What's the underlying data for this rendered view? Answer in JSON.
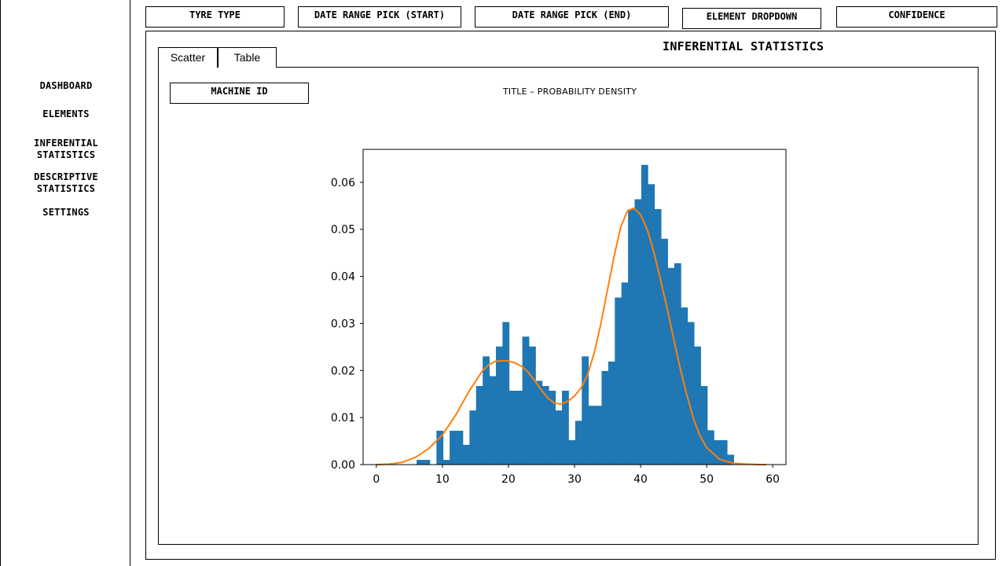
{
  "sidebar": {
    "items": [
      {
        "label": "DASHBOARD"
      },
      {
        "label": "ELEMENTS"
      },
      {
        "label_line1": "INFERENTIAL",
        "label_line2": "STATISTICS"
      },
      {
        "label_line1": "DESCRIPTIVE",
        "label_line2": "STATISTICS"
      },
      {
        "label": "SETTINGS"
      }
    ]
  },
  "filters": {
    "tyre_type": "TYRE TYPE",
    "date_start": "DATE RANGE PICK (START)",
    "date_end": "DATE RANGE PICK (END)",
    "element_dropdown": "ELEMENT DROPDOWN",
    "confidence": "CONFIDENCE"
  },
  "main": {
    "section_title": "INFERENTIAL STATISTICS",
    "tabs": [
      {
        "label": "Scatter"
      },
      {
        "label": "Table"
      }
    ],
    "machine_id": "MACHINE ID",
    "chart_title": "TITLE – PROBABILITY DENSITY"
  },
  "colors": {
    "bars": "#1f77b4",
    "curve": "#ff7f0e"
  },
  "chart_data": {
    "type": "bar",
    "overlay": "line",
    "xlim": [
      -2,
      62
    ],
    "ylim": [
      0,
      0.067
    ],
    "xticks": [
      0,
      10,
      20,
      30,
      40,
      50,
      60
    ],
    "yticks": [
      0.0,
      0.01,
      0.02,
      0.03,
      0.04,
      0.05,
      0.06
    ],
    "xtick_labels": [
      "0",
      "10",
      "20",
      "30",
      "40",
      "50",
      "60"
    ],
    "ytick_labels": [
      "0.00",
      "0.01",
      "0.02",
      "0.03",
      "0.04",
      "0.05",
      "0.06"
    ],
    "histogram": {
      "bin_edges": [
        6.1,
        7.1,
        8.1,
        9.1,
        10.1,
        11.1,
        12.1,
        13.1,
        14.1,
        15.1,
        16.1,
        17.1,
        18.1,
        19.1,
        20.1,
        21.1,
        22.1,
        23.1,
        24.1,
        25.1,
        26.1,
        27.1,
        28.1,
        29.1,
        30.1,
        31.1,
        32.1,
        33.1,
        34.1,
        35.1,
        36.1,
        37.1,
        38.1,
        39.1,
        40.1,
        41.1,
        42.1,
        43.1,
        44.1,
        45.1,
        46.1,
        47.1,
        48.1,
        49.1,
        50.1,
        51.1,
        52.1,
        53.1,
        54.1
      ],
      "values": [
        0.001,
        0.001,
        0.0,
        0.0072,
        0.001,
        0.0072,
        0.0072,
        0.0042,
        0.0115,
        0.0167,
        0.023,
        0.0188,
        0.0251,
        0.0303,
        0.0157,
        0.0157,
        0.0272,
        0.0251,
        0.0178,
        0.0167,
        0.0157,
        0.0115,
        0.0157,
        0.0052,
        0.0093,
        0.023,
        0.0125,
        0.0125,
        0.0199,
        0.0219,
        0.0355,
        0.0387,
        0.0543,
        0.0564,
        0.0637,
        0.0596,
        0.0543,
        0.048,
        0.0418,
        0.0428,
        0.0334,
        0.0303,
        0.0251,
        0.0167,
        0.0073,
        0.0052,
        0.0052,
        0.0021
      ]
    },
    "density_curve": {
      "x": [
        0,
        2,
        4,
        6,
        8,
        10,
        12,
        14,
        16,
        17,
        18,
        19,
        20,
        21,
        22,
        23,
        24,
        25,
        26,
        27,
        28,
        29,
        30,
        31,
        32,
        33,
        34,
        35,
        36,
        37,
        38,
        39,
        40,
        41,
        42,
        43,
        44,
        45,
        46,
        47,
        48,
        49,
        50,
        52,
        54,
        56,
        58,
        59
      ],
      "y": [
        0.0,
        0.0001,
        0.0005,
        0.0016,
        0.0035,
        0.0063,
        0.0105,
        0.0155,
        0.0198,
        0.0212,
        0.0219,
        0.0221,
        0.022,
        0.0216,
        0.0209,
        0.0196,
        0.0178,
        0.0158,
        0.0141,
        0.013,
        0.0129,
        0.0135,
        0.0146,
        0.0163,
        0.0192,
        0.0238,
        0.03,
        0.0372,
        0.0443,
        0.0505,
        0.0539,
        0.0545,
        0.0531,
        0.05,
        0.0452,
        0.0394,
        0.0333,
        0.0268,
        0.0204,
        0.0148,
        0.0098,
        0.0061,
        0.0036,
        0.0011,
        0.0003,
        0.0001,
        0.0,
        0.0
      ]
    }
  }
}
